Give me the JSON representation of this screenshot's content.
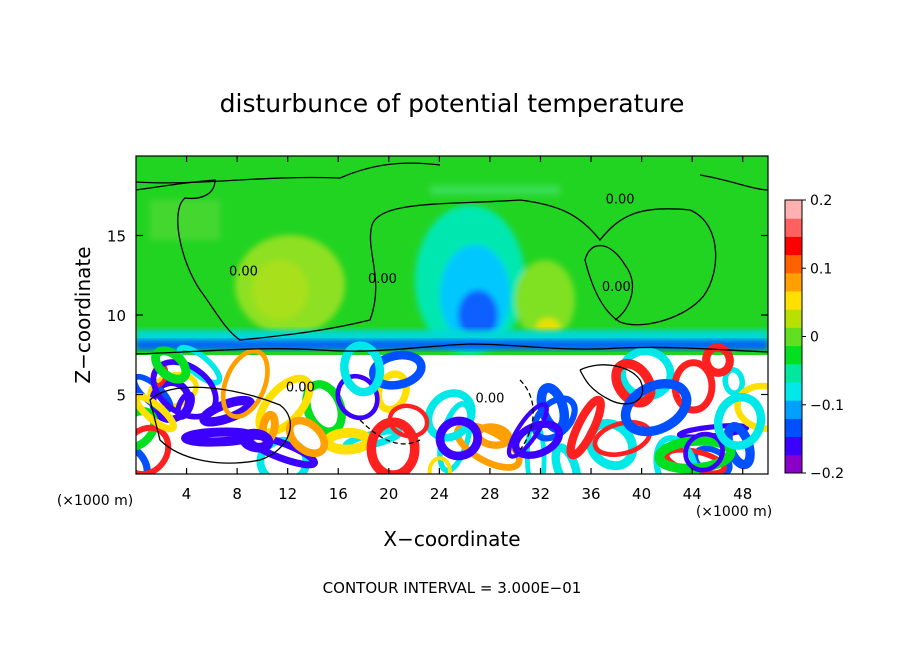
{
  "chart_data": {
    "type": "heatmap",
    "title": "disturbunce of potential temperature",
    "xlabel": "X−coordinate",
    "ylabel": "Z−coordinate",
    "x_unit_left": "(×1000 m)",
    "x_unit_right": "(×1000 m)",
    "footer": "CONTOUR INTERVAL = 3.000E−01",
    "xlim": [
      0,
      50
    ],
    "ylim": [
      0,
      20
    ],
    "x_ticks": [
      4,
      8,
      12,
      16,
      20,
      24,
      28,
      32,
      36,
      40,
      44,
      48
    ],
    "y_ticks": [
      5,
      10,
      15
    ],
    "colorbar": {
      "range": [
        -0.2,
        0.2
      ],
      "tick_values": [
        0.2,
        0.1,
        0,
        -0.1,
        -0.2
      ],
      "tick_labels": [
        "0.2",
        "0.1",
        "0",
        "−0.1",
        "−0.2"
      ],
      "colors": [
        "#8a00c8",
        "#3c00ff",
        "#0050ff",
        "#00a0ff",
        "#00e8e8",
        "#00e8a0",
        "#00e020",
        "#60e020",
        "#b8e000",
        "#ffe000",
        "#ffa000",
        "#ff6000",
        "#ff0000",
        "#ff6060",
        "#ffb0b0"
      ]
    },
    "contour_labels": [
      {
        "text": "0.00",
        "x": 8.5,
        "z": 12.5
      },
      {
        "text": "0.00",
        "x": 19.5,
        "z": 12.0
      },
      {
        "text": "0.00",
        "x": 38.0,
        "z": 11.5
      },
      {
        "text": "0.00",
        "x": 38.3,
        "z": 17.0
      },
      {
        "text": "0.00",
        "x": 28.0,
        "z": 4.5
      },
      {
        "text": "0.00",
        "x": 13.0,
        "z": 5.2
      }
    ]
  }
}
